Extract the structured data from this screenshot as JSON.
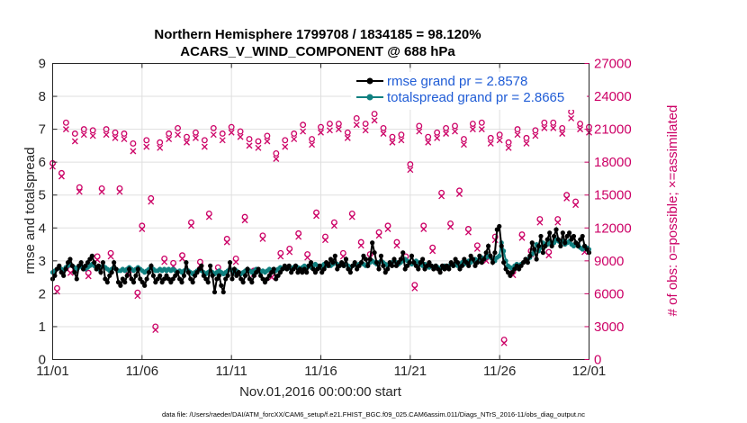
{
  "chart_data": {
    "type": "line",
    "title_line1": "Northern Hemisphere 1799708 / 1834185 = 98.120%",
    "title_line2": "ACARS_V_WIND_COMPONENT @ 688 hPa",
    "xlabel": "Nov.01,2016 00:00:00 start",
    "ylabel": "rmse and totalspread",
    "ylabel_right": "# of obs: o=possible; ×=assimilated",
    "xlim": [
      0,
      30
    ],
    "ylim": [
      0,
      9
    ],
    "ylim_right": [
      0,
      27000
    ],
    "x_ticks": [
      0,
      5,
      10,
      15,
      20,
      25,
      30
    ],
    "x_tick_labels": [
      "11/01",
      "11/06",
      "11/11",
      "11/16",
      "11/21",
      "11/26",
      "12/01"
    ],
    "y_ticks": [
      0,
      1,
      2,
      3,
      4,
      5,
      6,
      7,
      8,
      9
    ],
    "y_tick_labels": [
      "0",
      "1",
      "2",
      "3",
      "4",
      "5",
      "6",
      "7",
      "8",
      "9"
    ],
    "y_right_ticks": [
      0,
      3000,
      6000,
      9000,
      12000,
      15000,
      18000,
      21000,
      24000,
      27000
    ],
    "y_right_tick_labels": [
      "0",
      "3000",
      "6000",
      "9000",
      "12000",
      "15000",
      "18000",
      "21000",
      "24000",
      "27000"
    ],
    "grid": true,
    "legend_position": "top-right",
    "series": [
      {
        "name": "rmse grand pr = 2.8578",
        "color": "#000000",
        "marker": "dot",
        "values": [
          2.45,
          2.55,
          2.75,
          2.85,
          2.65,
          2.55,
          2.75,
          2.95,
          3.05,
          2.85,
          2.65,
          2.45,
          2.85,
          2.95,
          2.75,
          2.85,
          2.95,
          3.05,
          3.15,
          2.95,
          2.75,
          2.85,
          2.65,
          2.95,
          2.45,
          2.35,
          2.55,
          2.65,
          2.95,
          2.75,
          2.35,
          2.25,
          2.45,
          2.35,
          2.55,
          2.75,
          2.45,
          2.35,
          2.55,
          2.75,
          2.45,
          2.35,
          2.25,
          2.45,
          2.65,
          2.85,
          2.55,
          2.35,
          2.45,
          2.55,
          2.35,
          2.45,
          2.55,
          2.45,
          2.35,
          2.45,
          2.55,
          2.65,
          2.45,
          2.35,
          2.55,
          2.95,
          2.65,
          2.45,
          2.35,
          2.55,
          2.65,
          2.75,
          2.85,
          2.55,
          2.45,
          2.35,
          2.85,
          2.55,
          2.05,
          2.45,
          2.55,
          2.25,
          2.05,
          2.45,
          2.55,
          2.95,
          2.45,
          2.75,
          2.55,
          2.65,
          2.45,
          2.35,
          2.55,
          2.75,
          2.45,
          2.35,
          2.55,
          2.65,
          2.75,
          2.55,
          2.45,
          2.35,
          2.45,
          2.55,
          2.65,
          2.75,
          2.45,
          2.55,
          2.65,
          2.75,
          2.85,
          2.75,
          2.85,
          2.65,
          2.75,
          2.85,
          2.65,
          2.75,
          2.65,
          2.75,
          2.65,
          2.85,
          2.95,
          2.75,
          2.65,
          2.75,
          2.85,
          2.65,
          2.75,
          2.95,
          2.85,
          3.05,
          2.95,
          3.15,
          2.75,
          2.85,
          2.95,
          2.85,
          3.05,
          2.75,
          2.65,
          2.85,
          2.95,
          2.75,
          2.85,
          2.95,
          3.15,
          3.05,
          2.85,
          3.05,
          3.55,
          3.25,
          2.95,
          2.75,
          3.15,
          2.85,
          2.65,
          2.75,
          2.95,
          2.85,
          3.05,
          2.85,
          2.95,
          3.05,
          3.25,
          2.75,
          2.85,
          2.95,
          3.15,
          2.95,
          2.85,
          2.75,
          2.95,
          3.05,
          2.75,
          2.85,
          2.95,
          2.85,
          2.75,
          2.85,
          2.75,
          2.65,
          2.85,
          2.75,
          2.85,
          2.75,
          2.95,
          2.85,
          3.05,
          2.95,
          2.75,
          2.85,
          3.05,
          2.95,
          2.85,
          3.15,
          3.05,
          2.85,
          2.95,
          3.15,
          2.95,
          3.05,
          3.25,
          3.45,
          3.15,
          2.95,
          3.25,
          3.95,
          4.05,
          3.45,
          2.95,
          2.75,
          2.65,
          2.55,
          2.65,
          2.75,
          2.85,
          2.75,
          2.85,
          2.95,
          3.05,
          2.95,
          3.15,
          3.55,
          3.35,
          3.05,
          3.45,
          3.75,
          3.25,
          3.45,
          3.65,
          3.85,
          3.45,
          3.75,
          3.95,
          3.65,
          3.45,
          3.85,
          3.55,
          3.75,
          3.85,
          3.65,
          3.75,
          3.55,
          3.45,
          3.65,
          3.75,
          3.45,
          3.35,
          3.25
        ]
      },
      {
        "name": "totalspread grand pr = 2.8665",
        "color": "#108080",
        "marker": "dot",
        "values": [
          2.65,
          2.7,
          2.75,
          2.8,
          2.75,
          2.7,
          2.8,
          2.85,
          2.9,
          2.85,
          2.8,
          2.75,
          2.8,
          2.85,
          2.8,
          2.75,
          2.8,
          2.85,
          2.9,
          2.85,
          2.8,
          2.75,
          2.8,
          2.85,
          2.8,
          2.75,
          2.7,
          2.75,
          2.8,
          2.75,
          2.7,
          2.7,
          2.75,
          2.7,
          2.75,
          2.8,
          2.75,
          2.7,
          2.75,
          2.8,
          2.75,
          2.7,
          2.65,
          2.7,
          2.75,
          2.8,
          2.75,
          2.7,
          2.7,
          2.75,
          2.7,
          2.75,
          2.7,
          2.75,
          2.7,
          2.75,
          2.7,
          2.65,
          2.7,
          2.65,
          2.7,
          2.75,
          2.7,
          2.65,
          2.6,
          2.65,
          2.7,
          2.75,
          2.7,
          2.65,
          2.6,
          2.65,
          2.7,
          2.65,
          2.6,
          2.65,
          2.7,
          2.65,
          2.6,
          2.65,
          2.7,
          2.75,
          2.7,
          2.65,
          2.7,
          2.65,
          2.6,
          2.65,
          2.7,
          2.75,
          2.7,
          2.65,
          2.7,
          2.75,
          2.7,
          2.65,
          2.7,
          2.65,
          2.7,
          2.75,
          2.7,
          2.75,
          2.7,
          2.75,
          2.8,
          2.75,
          2.8,
          2.75,
          2.8,
          2.75,
          2.8,
          2.85,
          2.8,
          2.75,
          2.8,
          2.85,
          2.8,
          2.85,
          2.8,
          2.85,
          2.9,
          2.85,
          2.8,
          2.85,
          2.9,
          2.85,
          2.9,
          2.85,
          2.9,
          2.95,
          2.9,
          2.85,
          2.9,
          2.85,
          2.9,
          2.85,
          2.8,
          2.85,
          2.9,
          2.85,
          2.9,
          2.95,
          2.9,
          2.85,
          2.9,
          2.95,
          3.0,
          2.95,
          2.9,
          2.95,
          3.0,
          2.95,
          2.9,
          2.85,
          2.9,
          2.95,
          3.0,
          2.95,
          2.9,
          2.95,
          3.0,
          3.05,
          3.0,
          2.95,
          2.9,
          2.95,
          3.0,
          2.95,
          2.9,
          2.85,
          2.9,
          2.85,
          2.8,
          2.85,
          2.8,
          2.85,
          2.8,
          2.75,
          2.8,
          2.85,
          2.8,
          2.85,
          2.9,
          2.85,
          2.9,
          2.85,
          2.9,
          2.95,
          2.9,
          2.95,
          3.0,
          2.95,
          3.0,
          3.05,
          3.0,
          3.05,
          3.1,
          3.05,
          3.1,
          3.15,
          3.1,
          3.05,
          3.0,
          3.1,
          3.15,
          3.55,
          3.3,
          3.0,
          2.85,
          2.8,
          2.75,
          2.85,
          2.9,
          2.85,
          2.9,
          2.95,
          3.0,
          3.05,
          3.1,
          3.2,
          3.3,
          3.5,
          3.3,
          3.4,
          3.55,
          3.45,
          3.5,
          3.6,
          3.5,
          3.55,
          3.65,
          3.6,
          3.55,
          3.6,
          3.5,
          3.55,
          3.6,
          3.5,
          3.45,
          3.55,
          3.5,
          3.4,
          3.35,
          3.45,
          3.4,
          3.35
        ]
      },
      {
        "name": "possible",
        "color": "#cc0066",
        "marker": "circle",
        "axis": "right",
        "x": [
          0.0,
          0.25,
          0.5,
          0.75,
          1.0,
          1.25,
          1.5,
          1.75,
          2.0,
          2.25,
          2.5,
          2.75,
          3.0,
          3.25,
          3.5,
          3.75,
          4.0,
          4.25,
          4.5,
          4.75,
          5.0,
          5.25,
          5.5,
          5.75,
          6.0,
          6.25,
          6.5,
          6.75,
          7.0,
          7.25,
          7.5,
          7.75,
          8.0,
          8.25,
          8.5,
          8.75,
          9.0,
          9.25,
          9.5,
          9.75,
          10.0,
          10.25,
          10.5,
          10.75,
          11.0,
          11.25,
          11.5,
          11.75,
          12.0,
          12.25,
          12.5,
          12.75,
          13.0,
          13.25,
          13.5,
          13.75,
          14.0,
          14.25,
          14.5,
          14.75,
          15.0,
          15.25,
          15.5,
          15.75,
          16.0,
          16.25,
          16.5,
          16.75,
          17.0,
          17.25,
          17.5,
          17.75,
          18.0,
          18.25,
          18.5,
          18.75,
          19.0,
          19.25,
          19.5,
          19.75,
          20.0,
          20.25,
          20.5,
          20.75,
          21.0,
          21.25,
          21.5,
          21.75,
          22.0,
          22.25,
          22.5,
          22.75,
          23.0,
          23.25,
          23.5,
          23.75,
          24.0,
          24.25,
          24.5,
          24.75,
          25.0,
          25.25,
          25.5,
          25.75,
          26.0,
          26.25,
          26.5,
          26.75,
          27.0,
          27.25,
          27.5,
          27.75,
          28.0,
          28.25,
          28.5,
          28.75,
          29.0,
          29.25,
          29.5,
          29.75,
          30.0
        ],
        "values": [
          17900,
          6500,
          17000,
          21600,
          8200,
          20600,
          15700,
          21000,
          7900,
          20900,
          9400,
          15600,
          21000,
          9700,
          20700,
          15600,
          20600,
          8000,
          19700,
          6100,
          12200,
          20000,
          14700,
          3000,
          19800,
          9200,
          20600,
          8800,
          21100,
          9500,
          20300,
          12500,
          20700,
          8900,
          20000,
          13300,
          21100,
          8400,
          20600,
          11000,
          21200,
          9200,
          20800,
          13000,
          20100,
          8100,
          19900,
          11300,
          20400,
          7800,
          18800,
          9700,
          20000,
          10100,
          20600,
          11500,
          21400,
          9600,
          20100,
          13400,
          21200,
          11200,
          21500,
          12500,
          21500,
          9700,
          20700,
          13300,
          22000,
          10700,
          21500,
          9600,
          22400,
          11600,
          21100,
          12200,
          20300,
          10700,
          20500,
          9400,
          17800,
          6800,
          21300,
          12200,
          20300,
          10200,
          20700,
          15200,
          21100,
          12400,
          21300,
          15400,
          20100,
          11900,
          21500,
          10400,
          21600,
          9300,
          20200,
          11200,
          20500,
          1800,
          19800,
          8000,
          21000,
          11400,
          20200,
          9900,
          20900,
          12800,
          21600,
          9800,
          21600,
          12800,
          21100,
          15000,
          22600,
          14400,
          21500,
          10100,
          21200
        ]
      },
      {
        "name": "assimilated",
        "color": "#cc0066",
        "marker": "x",
        "axis": "right",
        "x": [
          0.0,
          0.25,
          0.5,
          0.75,
          1.0,
          1.25,
          1.5,
          1.75,
          2.0,
          2.25,
          2.5,
          2.75,
          3.0,
          3.25,
          3.5,
          3.75,
          4.0,
          4.25,
          4.5,
          4.75,
          5.0,
          5.25,
          5.5,
          5.75,
          6.0,
          6.25,
          6.5,
          6.75,
          7.0,
          7.25,
          7.5,
          7.75,
          8.0,
          8.25,
          8.5,
          8.75,
          9.0,
          9.25,
          9.5,
          9.75,
          10.0,
          10.25,
          10.5,
          10.75,
          11.0,
          11.25,
          11.5,
          11.75,
          12.0,
          12.25,
          12.5,
          12.75,
          13.0,
          13.25,
          13.5,
          13.75,
          14.0,
          14.25,
          14.5,
          14.75,
          15.0,
          15.25,
          15.5,
          15.75,
          16.0,
          16.25,
          16.5,
          16.75,
          17.0,
          17.25,
          17.5,
          17.75,
          18.0,
          18.25,
          18.5,
          18.75,
          19.0,
          19.25,
          19.5,
          19.75,
          20.0,
          20.25,
          20.5,
          20.75,
          21.0,
          21.25,
          21.5,
          21.75,
          22.0,
          22.25,
          22.5,
          22.75,
          23.0,
          23.25,
          23.5,
          23.75,
          24.0,
          24.25,
          24.5,
          24.75,
          25.0,
          25.25,
          25.5,
          25.75,
          26.0,
          26.25,
          26.5,
          26.75,
          27.0,
          27.25,
          27.5,
          27.75,
          28.0,
          28.25,
          28.5,
          28.75,
          29.0,
          29.25,
          29.5,
          29.75,
          30.0
        ],
        "values": [
          17600,
          6200,
          16700,
          21000,
          7900,
          19900,
          15300,
          20500,
          7600,
          20400,
          9100,
          15300,
          20500,
          9400,
          20200,
          15300,
          20100,
          7700,
          19000,
          5800,
          11900,
          19400,
          14400,
          2700,
          19300,
          8900,
          20100,
          8500,
          20500,
          9200,
          19800,
          12200,
          20200,
          8600,
          19400,
          13000,
          20500,
          8100,
          20000,
          10700,
          20700,
          8900,
          20300,
          12700,
          19500,
          7800,
          19300,
          11000,
          19900,
          7500,
          18300,
          9400,
          19400,
          9800,
          20100,
          11200,
          20800,
          9300,
          19600,
          13100,
          20700,
          10900,
          20900,
          12200,
          21000,
          9400,
          20200,
          13000,
          21400,
          10400,
          20900,
          9300,
          21800,
          11300,
          20600,
          11900,
          19800,
          10400,
          20000,
          9100,
          17300,
          6500,
          20800,
          11900,
          19800,
          9900,
          20200,
          14900,
          20600,
          12100,
          20800,
          15100,
          19600,
          11600,
          21000,
          10100,
          21000,
          9000,
          19700,
          10900,
          20000,
          1500,
          19300,
          7700,
          20500,
          11100,
          19700,
          9600,
          20400,
          12500,
          21100,
          9500,
          21100,
          12500,
          20600,
          14700,
          22000,
          14100,
          21000,
          9800,
          20700
        ]
      }
    ]
  },
  "footer_text": "data file: /Users/raeder/DAI/ATM_forcXX/CAM6_setup/f.e21.FHIST_BGC.f09_025.CAM6assim.011/Diags_NTrS_2016-11/obs_diag_output.nc"
}
